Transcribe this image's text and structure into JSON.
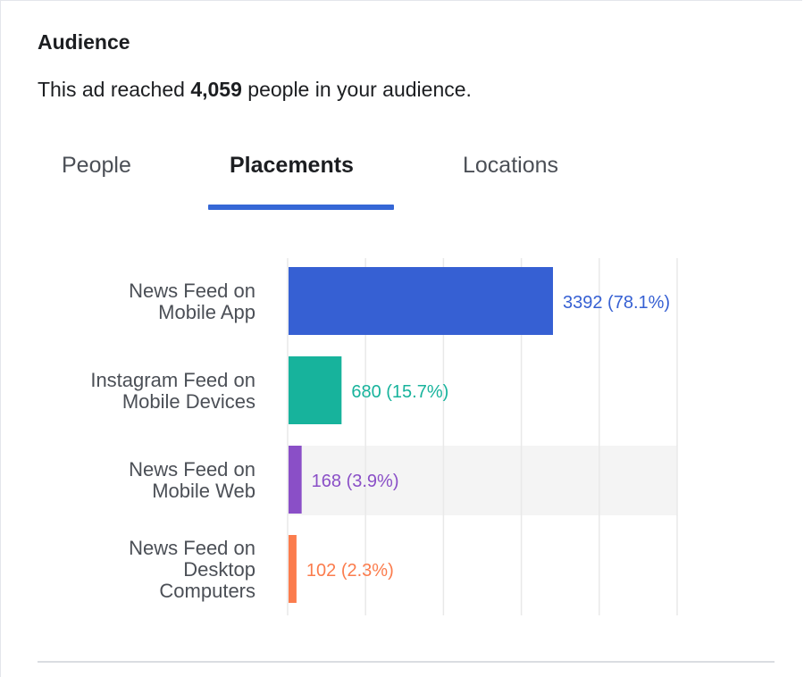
{
  "header": {
    "title": "Audience",
    "summary_prefix": "This ad reached",
    "summary_count": "4,059",
    "summary_suffix": "people in your audience."
  },
  "tabs": [
    {
      "label": "People",
      "active": false
    },
    {
      "label": "Placements",
      "active": true
    },
    {
      "label": "Locations",
      "active": false
    }
  ],
  "colors": {
    "accent": "#3567d6",
    "gridline": "#e9e9e9",
    "row_highlight": "#f4f4f4",
    "label_text": "#4b4f56"
  },
  "chart_data": {
    "type": "bar",
    "orientation": "horizontal",
    "grid": true,
    "highlighted_category_index": 2,
    "categories": [
      [
        "News Feed on",
        "Mobile App"
      ],
      [
        "Instagram Feed on",
        "Mobile Devices"
      ],
      [
        "News Feed on",
        "Mobile Web"
      ],
      [
        "News Feed on",
        "Desktop",
        "Computers"
      ]
    ],
    "values": [
      3392,
      680,
      168,
      102
    ],
    "value_labels": [
      "3392 (78.1%)",
      "680 (15.7%)",
      "168 (3.9%)",
      "102 (2.3%)"
    ],
    "bar_colors": [
      "#3660d3",
      "#17b39c",
      "#8a4fc7",
      "#fb7c4d"
    ],
    "xlim": [
      0,
      5000
    ]
  }
}
